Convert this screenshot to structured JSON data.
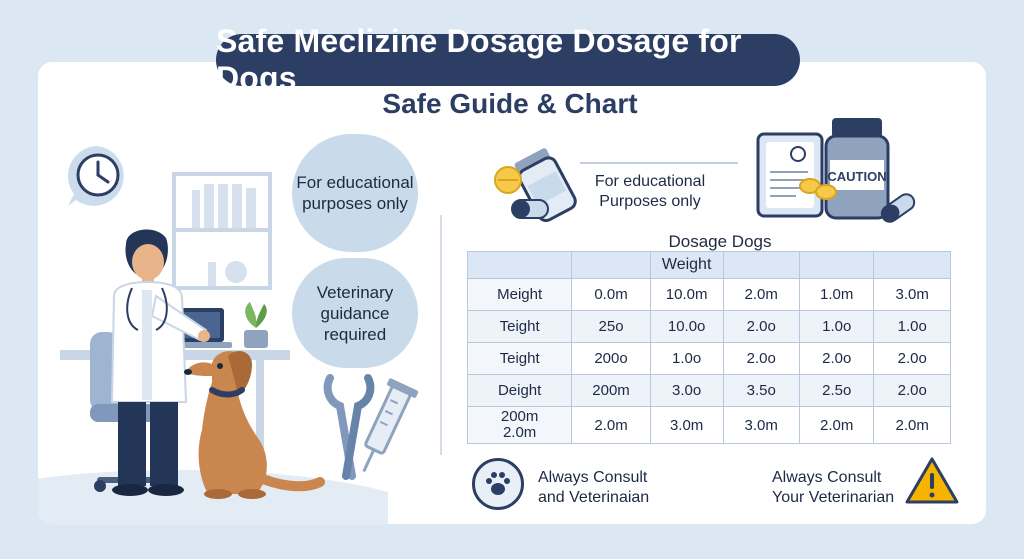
{
  "header": {
    "title": "Safe Meclizine Dosage Dosage for Dogs",
    "subtitle": "Safe Guide & Chart"
  },
  "left_panel": {
    "bubble_educational": "For educational purposes only",
    "bubble_veterinary": "Veterinary guidance required"
  },
  "right_panel": {
    "note": "For educational Purposes only",
    "table_title": "Dosage Dogs",
    "caution_label": "CAUTION"
  },
  "table": {
    "header": [
      "",
      "",
      "Weight",
      "",
      "",
      ""
    ],
    "rows": [
      [
        "Meight",
        "0.0m",
        "10.0m",
        "2.0m",
        "1.0m",
        "3.0m"
      ],
      [
        "Teight",
        "25o",
        "10.0o",
        "2.0o",
        "1.0o",
        "1.0o"
      ],
      [
        "Teight",
        "200o",
        "1.0o",
        "2.0o",
        "2.0o",
        "2.0o"
      ],
      [
        "Deight",
        "200m",
        "3.0o",
        "3.5o",
        "2.5o",
        "2.0o"
      ],
      [
        "200m\n2.0m",
        "2.0m",
        "3.0m",
        "3.0m",
        "2.0m",
        "2.0m"
      ]
    ]
  },
  "footer": {
    "consult_left": "Always Consult and Veterinaian",
    "consult_right": "Always Consult Your Veterinarian"
  },
  "colors": {
    "navy": "#2c3e64",
    "bubble": "#c9daea",
    "background": "#dce7f4",
    "warning": "#f4b400"
  },
  "icons": [
    "clock-icon",
    "pill-bottle-icon",
    "capsule-icon",
    "document-icon",
    "caution-bottle-icon",
    "paw-icon",
    "warning-triangle-icon",
    "syringe-icon",
    "tongs-icon",
    "laptop-icon",
    "plant-icon"
  ]
}
